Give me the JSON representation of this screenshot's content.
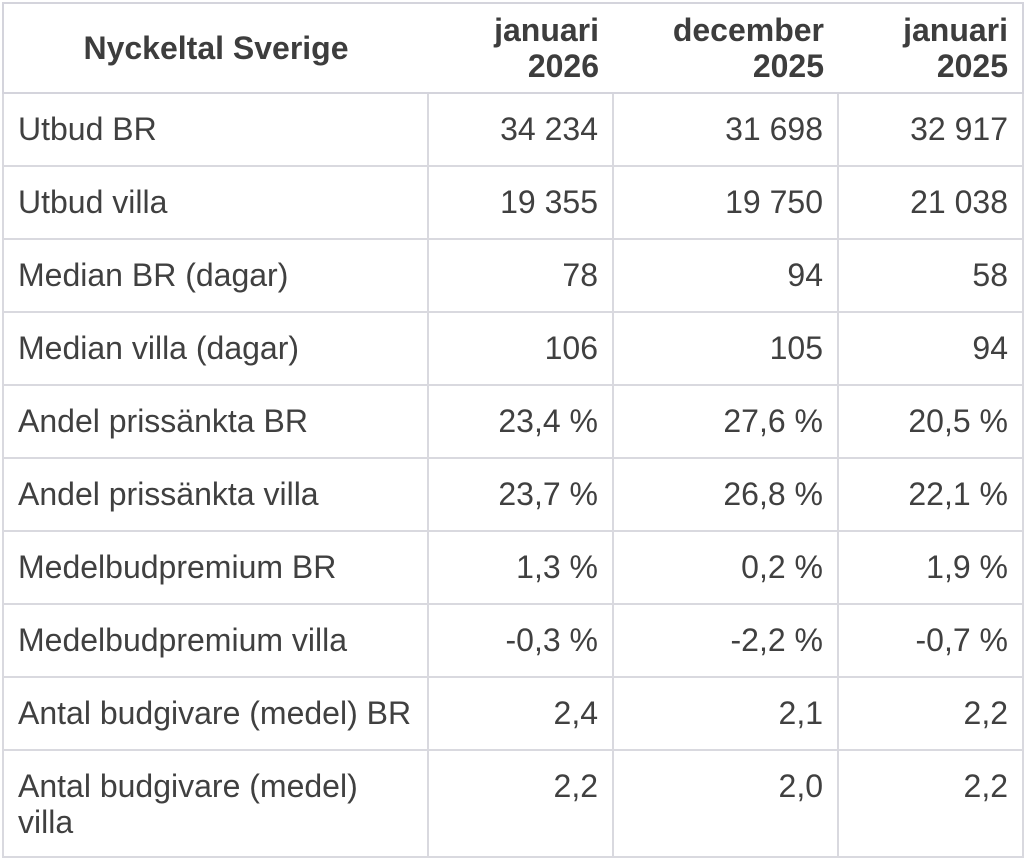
{
  "colors": {
    "text": "#404040",
    "border": "#d6d6dc",
    "background": "#ffffff"
  },
  "chart_data": {
    "type": "table",
    "title": "Nyckeltal Sverige",
    "columns": [
      "januari 2026",
      "december 2025",
      "januari 2025"
    ],
    "rows": [
      {
        "label": "Utbud BR",
        "values": [
          "34 234",
          "31 698",
          "32 917"
        ]
      },
      {
        "label": "Utbud villa",
        "values": [
          "19 355",
          "19 750",
          "21 038"
        ]
      },
      {
        "label": "Median BR (dagar)",
        "values": [
          "78",
          "94",
          "58"
        ]
      },
      {
        "label": "Median villa (dagar)",
        "values": [
          "106",
          "105",
          "94"
        ]
      },
      {
        "label": "Andel prissänkta BR",
        "values": [
          "23,4 %",
          "27,6 %",
          "20,5 %"
        ]
      },
      {
        "label": "Andel prissänkta villa",
        "values": [
          "23,7 %",
          "26,8 %",
          "22,1 %"
        ]
      },
      {
        "label": "Medelbudpremium BR",
        "values": [
          "1,3 %",
          "0,2 %",
          "1,9 %"
        ]
      },
      {
        "label": "Medelbudpremium villa",
        "values": [
          "-0,3 %",
          "-2,2 %",
          "-0,7 %"
        ]
      },
      {
        "label": "Antal budgivare (medel) BR",
        "values": [
          "2,4",
          "2,1",
          "2,2"
        ]
      },
      {
        "label": "Antal budgivare (medel)\nvilla",
        "values": [
          "2,2",
          "2,0",
          "2,2"
        ]
      }
    ]
  }
}
